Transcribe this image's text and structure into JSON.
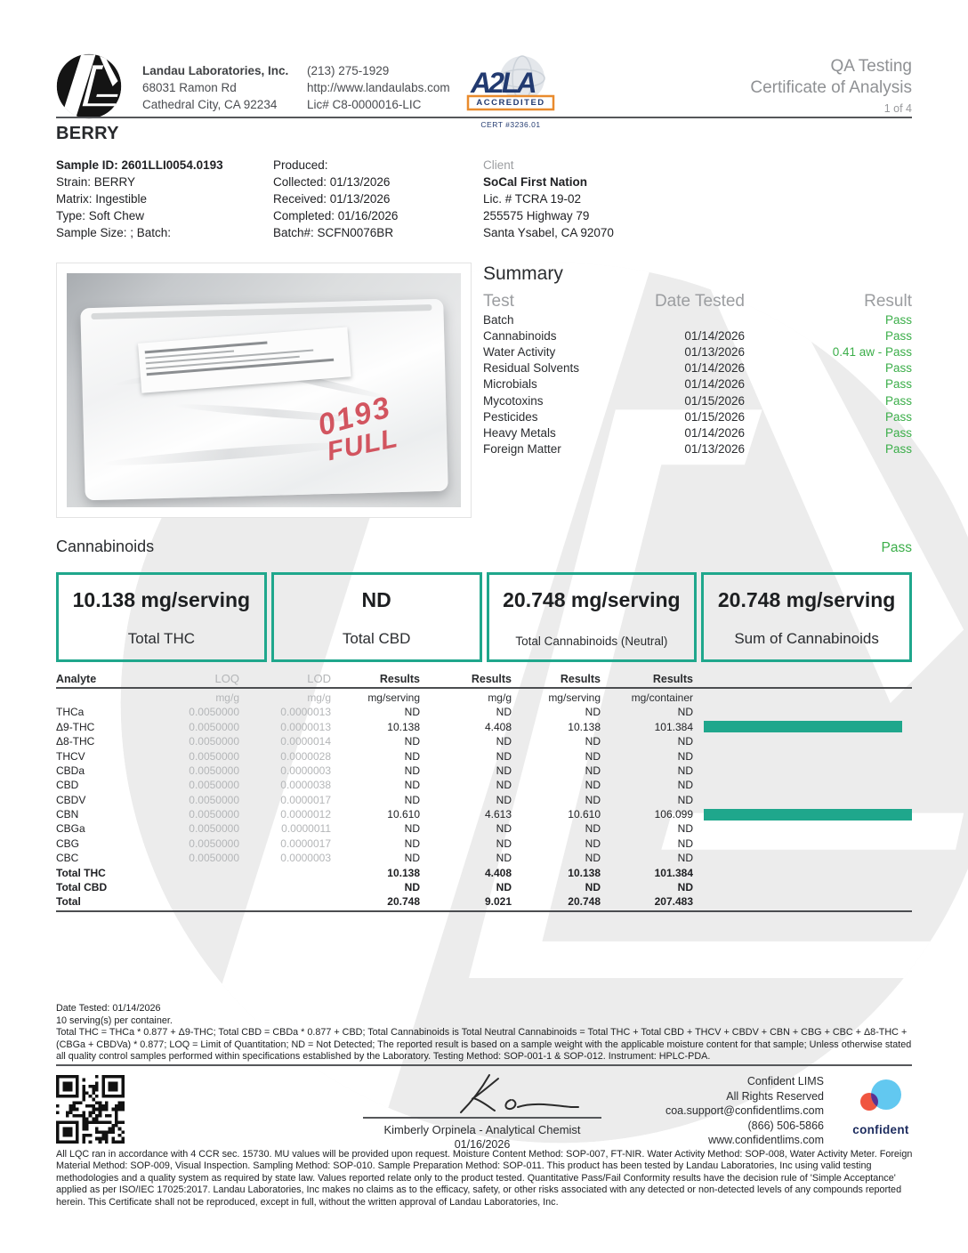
{
  "header": {
    "company": {
      "name": "Landau Laboratories, Inc.",
      "address1": "68031 Ramon Rd",
      "address2": "Cathedral City, CA 92234"
    },
    "contact": {
      "phone": "(213) 275-1929",
      "website": "http://www.landaulabs.com",
      "license": "Lic# C8-0000016-LIC"
    },
    "badge": {
      "accredited": "ACCREDITED",
      "cert": "CERT #3236.01"
    },
    "title_line1": "QA Testing",
    "title_line2": "Certificate of Analysis",
    "page": "1 of 4"
  },
  "product_title": "BERRY",
  "sample": {
    "lines": [
      "Sample ID: 2601LLI0054.0193",
      "Strain: BERRY",
      "Matrix: Ingestible",
      "Type: Soft Chew",
      "Sample Size: ; Batch:"
    ]
  },
  "production": {
    "lines": [
      "Produced:",
      "Collected: 01/13/2026",
      "Received: 01/13/2026",
      "Completed: 01/16/2026",
      "Batch#: SCFN0076BR"
    ]
  },
  "client": {
    "label": "Client",
    "lines": [
      "SoCal First Nation",
      "Lic. # TCRA 19-02",
      "255575 Highway 79",
      "Santa Ysabel, CA 92070"
    ]
  },
  "photo": {
    "annotation_line1": "0193",
    "annotation_line2": "FULL"
  },
  "summary": {
    "title": "Summary",
    "columns": [
      "Test",
      "Date Tested",
      "Result"
    ],
    "rows": [
      {
        "test": "Batch",
        "date": "",
        "result": "Pass"
      },
      {
        "test": "Cannabinoids",
        "date": "01/14/2026",
        "result": "Pass"
      },
      {
        "test": "Water Activity",
        "date": "01/13/2026",
        "result": "0.41 aw - Pass"
      },
      {
        "test": "Residual Solvents",
        "date": "01/14/2026",
        "result": "Pass"
      },
      {
        "test": "Microbials",
        "date": "01/14/2026",
        "result": "Pass"
      },
      {
        "test": "Mycotoxins",
        "date": "01/15/2026",
        "result": "Pass"
      },
      {
        "test": "Pesticides",
        "date": "01/15/2026",
        "result": "Pass"
      },
      {
        "test": "Heavy Metals",
        "date": "01/14/2026",
        "result": "Pass"
      },
      {
        "test": "Foreign Matter",
        "date": "01/13/2026",
        "result": "Pass"
      }
    ]
  },
  "cannabinoids": {
    "title": "Cannabinoids",
    "status": "Pass",
    "boxes": [
      {
        "value": "10.138 mg/serving",
        "label": "Total THC"
      },
      {
        "value": "ND",
        "label": "Total CBD"
      },
      {
        "value": "20.748 mg/serving",
        "label": "Total Cannabinoids (Neutral)"
      },
      {
        "value": "20.748 mg/serving",
        "label": "Sum of Cannabinoids"
      }
    ]
  },
  "analyte_table": {
    "columns": [
      "Analyte",
      "LOQ",
      "LOD",
      "Results",
      "Results",
      "Results",
      "Results"
    ],
    "units": [
      "",
      "mg/g",
      "mg/g",
      "mg/serving",
      "mg/g",
      "mg/serving",
      "mg/container"
    ],
    "rows": [
      {
        "analyte": "THCa",
        "loq": "0.0050000",
        "lod": "0.0000013",
        "results": [
          "ND",
          "ND",
          "ND",
          "ND"
        ],
        "bar_pct": null,
        "total": false
      },
      {
        "analyte": "Δ9-THC",
        "loq": "0.0050000",
        "lod": "0.0000013",
        "results": [
          "10.138",
          "4.408",
          "10.138",
          "101.384"
        ],
        "bar_pct": 95.5,
        "total": false
      },
      {
        "analyte": "Δ8-THC",
        "loq": "0.0050000",
        "lod": "0.0000014",
        "results": [
          "ND",
          "ND",
          "ND",
          "ND"
        ],
        "bar_pct": null,
        "total": false
      },
      {
        "analyte": "THCV",
        "loq": "0.0050000",
        "lod": "0.0000028",
        "results": [
          "ND",
          "ND",
          "ND",
          "ND"
        ],
        "bar_pct": null,
        "total": false
      },
      {
        "analyte": "CBDa",
        "loq": "0.0050000",
        "lod": "0.0000003",
        "results": [
          "ND",
          "ND",
          "ND",
          "ND"
        ],
        "bar_pct": null,
        "total": false
      },
      {
        "analyte": "CBD",
        "loq": "0.0050000",
        "lod": "0.0000038",
        "results": [
          "ND",
          "ND",
          "ND",
          "ND"
        ],
        "bar_pct": null,
        "total": false
      },
      {
        "analyte": "CBDV",
        "loq": "0.0050000",
        "lod": "0.0000017",
        "results": [
          "ND",
          "ND",
          "ND",
          "ND"
        ],
        "bar_pct": null,
        "total": false
      },
      {
        "analyte": "CBN",
        "loq": "0.0050000",
        "lod": "0.0000012",
        "results": [
          "10.610",
          "4.613",
          "10.610",
          "106.099"
        ],
        "bar_pct": 100,
        "total": false
      },
      {
        "analyte": "CBGa",
        "loq": "0.0050000",
        "lod": "0.0000011",
        "results": [
          "ND",
          "ND",
          "ND",
          "ND"
        ],
        "bar_pct": null,
        "total": false
      },
      {
        "analyte": "CBG",
        "loq": "0.0050000",
        "lod": "0.0000017",
        "results": [
          "ND",
          "ND",
          "ND",
          "ND"
        ],
        "bar_pct": null,
        "total": false
      },
      {
        "analyte": "CBC",
        "loq": "0.0050000",
        "lod": "0.0000003",
        "results": [
          "ND",
          "ND",
          "ND",
          "ND"
        ],
        "bar_pct": null,
        "total": false
      },
      {
        "analyte": "Total THC",
        "loq": "",
        "lod": "",
        "results": [
          "10.138",
          "4.408",
          "10.138",
          "101.384"
        ],
        "bar_pct": null,
        "total": true
      },
      {
        "analyte": "Total CBD",
        "loq": "",
        "lod": "",
        "results": [
          "ND",
          "ND",
          "ND",
          "ND"
        ],
        "bar_pct": null,
        "total": true
      },
      {
        "analyte": "Total",
        "loq": "",
        "lod": "",
        "results": [
          "20.748",
          "9.021",
          "20.748",
          "207.483"
        ],
        "bar_pct": null,
        "total": true
      }
    ]
  },
  "notes": {
    "date_tested": "Date Tested: 01/14/2026",
    "servings": "10 serving(s) per container.",
    "paragraph": "Total THC = THCa * 0.877 + Δ9-THC; Total CBD = CBDa * 0.877 + CBD;  Total Cannabinoids is Total Neutral Cannabinoids = Total THC + Total CBD + THCV + CBDV + CBN + CBG + CBC + Δ8-THC + (CBGa + CBDVa) * 0.877; LOQ = Limit of Quantitation; ND = Not Detected; The reported result is based on a sample weight with the applicable moisture content for that sample; Unless otherwise stated all quality control samples performed within specifications established by the Laboratory. Testing Method: SOP-001-1 & SOP-012. Instrument: HPLC-PDA."
  },
  "footer": {
    "signature": {
      "name": "Kimberly Orpinela - Analytical Chemist",
      "date": "01/16/2026"
    },
    "lims": {
      "line1": "Confident LIMS",
      "line2": "All Rights Reserved",
      "line3": "coa.support@confidentlims.com",
      "line4": "(866) 506-5866",
      "line5": "www.confidentlims.com",
      "logo_text": "confident"
    },
    "fineprint": "All LQC ran in accordance with 4 CCR sec. 15730. MU values will be provided upon request. Moisture Content Method: SOP-007, FT-NIR. Water Activity Method: SOP-008, Water Activity Meter. Foreign Material Method: SOP-009, Visual Inspection. Sampling Method: SOP-010. Sample Preparation Method: SOP-011. This product has been tested by Landau Laboratories, Inc using valid testing methodologies and a quality system as required by state law. Values reported relate only to the product tested. Quantitative Pass/Fail Conformity results have the decision rule of 'Simple Acceptance' applied as per ISO/IEC 17025:2017. Landau Laboratories, Inc makes no claims as to the efficacy, safety, or other risks associated with any detected or non-detected levels of any compounds reported herein. This Certificate shall not be reproduced, except in full, without the written approval of Landau Laboratories, Inc.",
    "qr_label": "qr-code"
  },
  "colors": {
    "teal_accent": "#1fa78c",
    "pass_green": "#3bae49",
    "badge_navy": "#223a70",
    "badge_orange": "#e98b2d",
    "confident_blue": "#62c8f0",
    "confident_red": "#f05540",
    "confident_purple": "#5b3191",
    "watermark_gray": "#ececec",
    "marker_red": "#cf4450"
  }
}
